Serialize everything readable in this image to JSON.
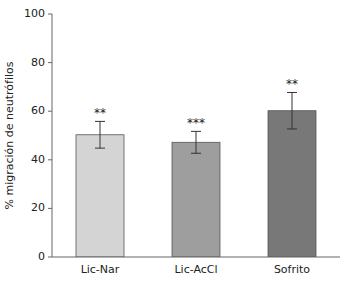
{
  "chart_data": {
    "type": "bar",
    "categories": [
      "Lic-Nar",
      "Lic-AcCl",
      "Sofrito"
    ],
    "values": [
      50.3,
      47.2,
      60.2
    ],
    "errors": [
      5.5,
      4.5,
      7.5
    ],
    "colors": [
      "#d4d4d4",
      "#9e9e9e",
      "#787878"
    ],
    "annotations": [
      "**",
      "***",
      "**"
    ],
    "ylabel": "% migración de neutrófilos",
    "ylim": [
      0,
      100
    ],
    "yticks": [
      0,
      20,
      40,
      60,
      80,
      100
    ],
    "grid": false
  }
}
